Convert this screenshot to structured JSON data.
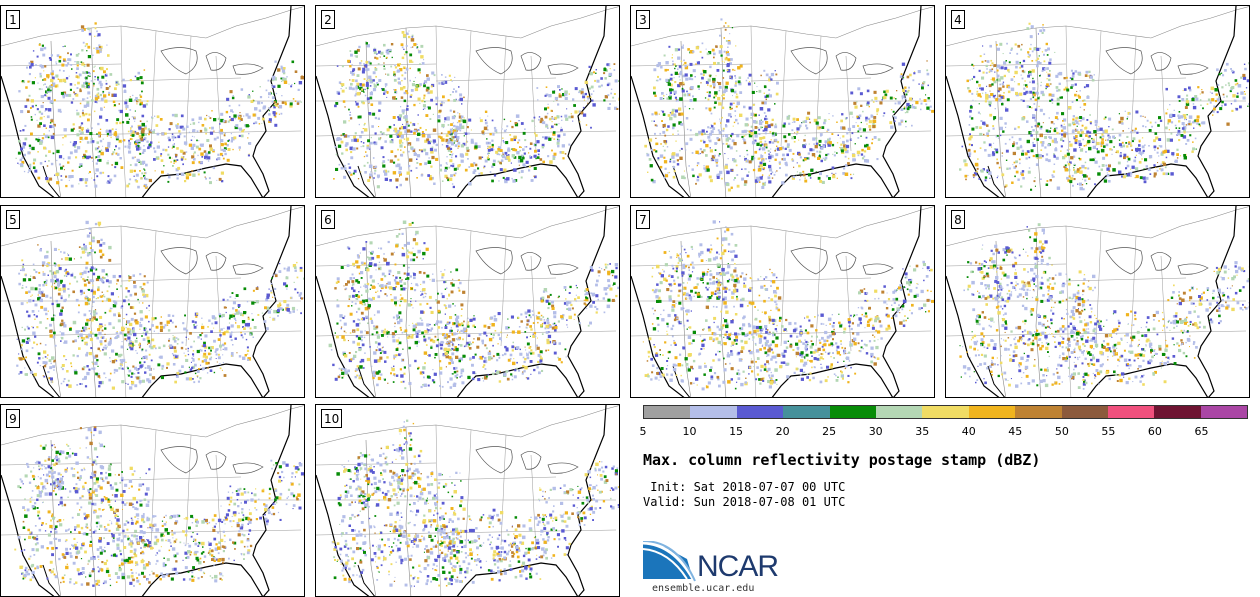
{
  "panels": [
    {
      "label": "1"
    },
    {
      "label": "2"
    },
    {
      "label": "3"
    },
    {
      "label": "4"
    },
    {
      "label": "5"
    },
    {
      "label": "6"
    },
    {
      "label": "7"
    },
    {
      "label": "8"
    },
    {
      "label": "9"
    },
    {
      "label": "10"
    }
  ],
  "colorbar": {
    "colors": [
      "#a0a0a0",
      "#b4bee8",
      "#5a5ad2",
      "#46919b",
      "#078c07",
      "#b4d7b4",
      "#f0dc64",
      "#f0b41e",
      "#be8232",
      "#8c5a3c",
      "#f0507d",
      "#6e1432",
      "#aa46a5"
    ],
    "ticks": [
      "5",
      "10",
      "15",
      "20",
      "25",
      "30",
      "35",
      "40",
      "45",
      "50",
      "55",
      "60",
      "65"
    ]
  },
  "title": "Max. column reflectivity postage stamp (dBZ)",
  "init_line": " Init: Sat 2018-07-07 00 UTC",
  "valid_line": "Valid: Sun 2018-07-08 01 UTC",
  "logo_text": "NCAR",
  "website": "ensemble.ucar.edu"
}
